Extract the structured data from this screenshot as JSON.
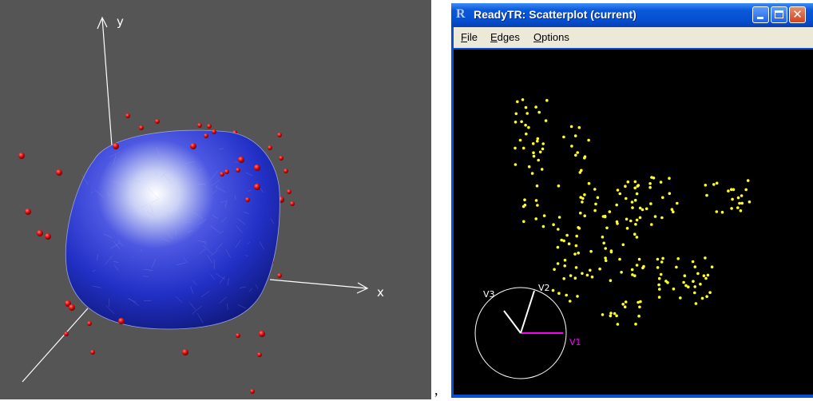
{
  "rgl_scene": {
    "axis_labels": {
      "y": "y",
      "x": "x"
    },
    "colors": {
      "background": "#555555",
      "surface": "#2233cc",
      "points": "#dd1111",
      "axes": "#ffffff"
    }
  },
  "separator": ",",
  "window": {
    "title": "ReadyTR: Scatterplot (current)",
    "title_icon": "R",
    "buttons": {
      "minimize": "minimize",
      "maximize": "maximize",
      "close": "✕"
    },
    "menu": [
      {
        "mnemonic": "F",
        "rest": "ile"
      },
      {
        "mnemonic": "E",
        "rest": "dges"
      },
      {
        "mnemonic": "O",
        "rest": "ptions"
      }
    ],
    "plot": {
      "point_color": "#ffff22",
      "background": "#000000",
      "axis_circle": {
        "labels": {
          "v1": "V1",
          "v2": "V2",
          "v3": "V3"
        },
        "v1_color": "#ff00ff",
        "v2_color": "#ffffff",
        "v3_color": "#ffffff"
      }
    }
  }
}
